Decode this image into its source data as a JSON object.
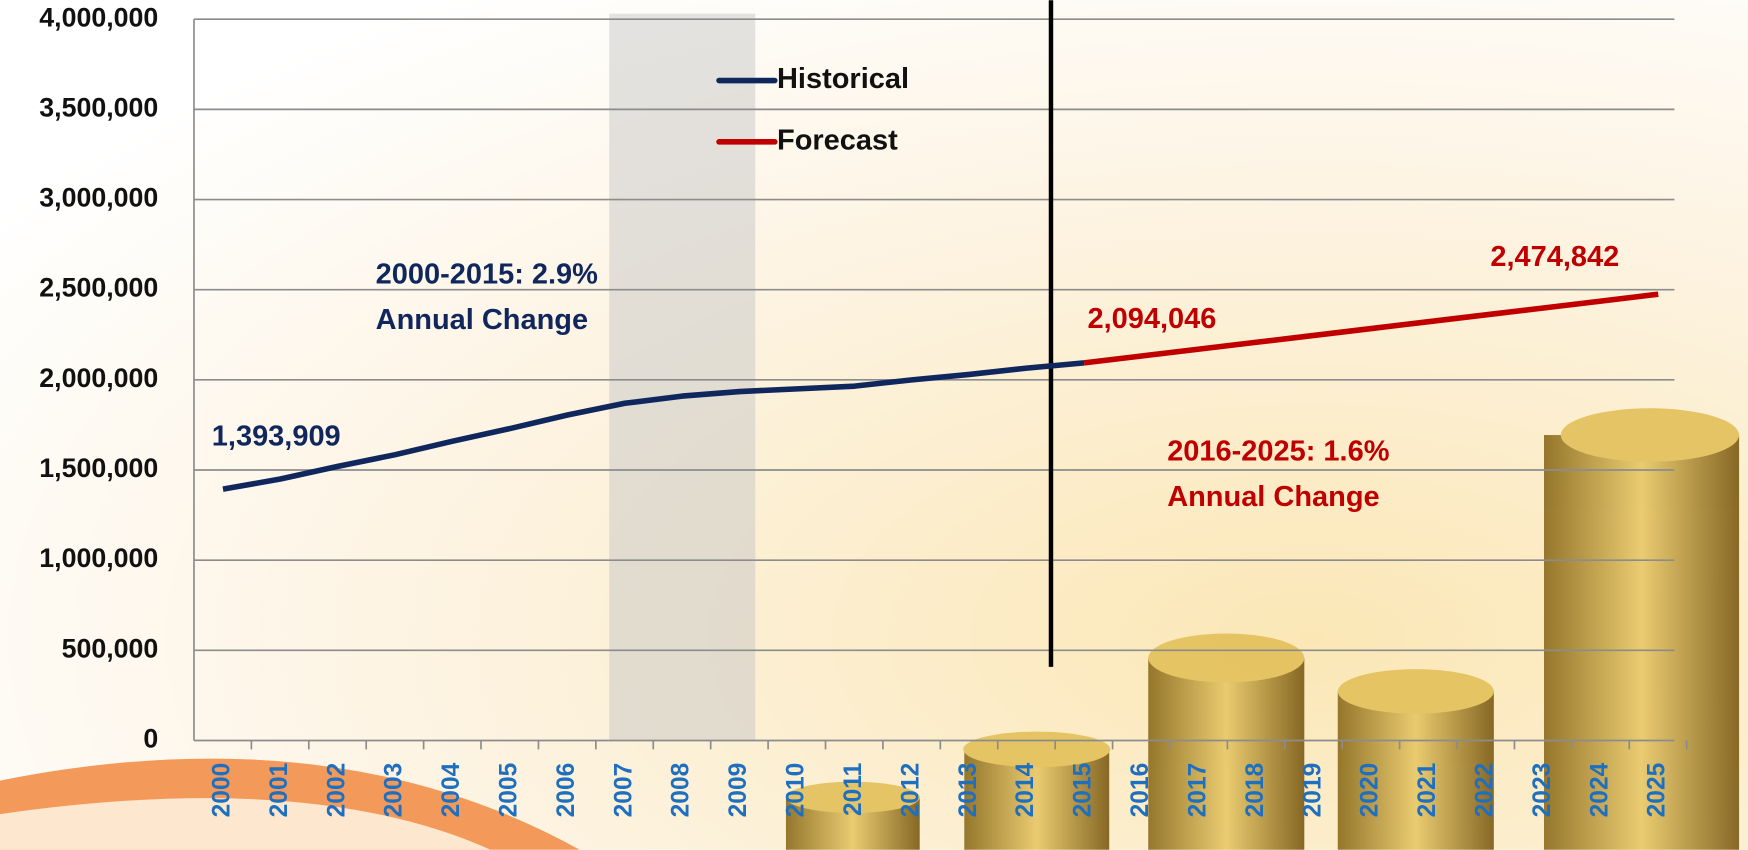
{
  "chart_data": {
    "type": "line",
    "categories": [
      "2000",
      "2001",
      "2002",
      "2003",
      "2004",
      "2005",
      "2006",
      "2007",
      "2008",
      "2009",
      "2010",
      "2011",
      "2012",
      "2013",
      "2014",
      "2015",
      "2016",
      "2017",
      "2018",
      "2019",
      "2020",
      "2021",
      "2022",
      "2023",
      "2024",
      "2025"
    ],
    "series": [
      {
        "name": "Historical",
        "color": "#10275e",
        "values": [
          1393909,
          1450000,
          1520000,
          1585000,
          1660000,
          1730000,
          1805000,
          1870000,
          1910000,
          1935000,
          1950000,
          1965000,
          2000000,
          2030000,
          2065000,
          2094046,
          null,
          null,
          null,
          null,
          null,
          null,
          null,
          null,
          null,
          null
        ],
        "value_labels": [
          "1,393,909",
          null,
          null,
          null,
          null,
          null,
          null,
          null,
          null,
          null,
          null,
          null,
          null,
          null,
          null,
          null,
          null,
          null,
          null,
          null,
          null,
          null,
          null,
          null,
          null,
          null
        ]
      },
      {
        "name": "Forecast",
        "color": "#c00000",
        "values": [
          null,
          null,
          null,
          null,
          null,
          null,
          null,
          null,
          null,
          null,
          null,
          null,
          null,
          null,
          null,
          2094046,
          2132126,
          2170206,
          2208285,
          2246365,
          2284444,
          2322524,
          2360604,
          2398683,
          2436763,
          2474842
        ],
        "value_labels": [
          null,
          null,
          null,
          null,
          null,
          null,
          null,
          null,
          null,
          null,
          null,
          null,
          null,
          null,
          null,
          "2,094,046",
          null,
          null,
          null,
          null,
          null,
          null,
          null,
          null,
          null,
          "2,474,842"
        ]
      }
    ],
    "ylim": [
      0,
      4000000
    ],
    "yticks": [
      0,
      {
        "value": 500000,
        "label": "500,000"
      },
      {
        "value": 1000000,
        "label": "1,000,000"
      },
      {
        "value": 1500000,
        "label": "1,500,000"
      },
      {
        "value": 2000000,
        "label": "2,000,000"
      },
      {
        "value": 2500000,
        "label": "2,500,000"
      },
      {
        "value": 3000000,
        "label": "3,000,000"
      },
      {
        "value": 3500000,
        "label": "3,500,000"
      },
      {
        "value": 4000000,
        "label": "4,000,000"
      }
    ],
    "grid": true,
    "legend": "top",
    "highlight": {
      "from": "2007",
      "to": "2009"
    },
    "annotations": [
      {
        "lines": [
          "2000-2015: 2.9%",
          "Annual Change"
        ],
        "color": "#10275e"
      },
      {
        "lines": [
          "2016-2025: 1.6%",
          "Annual Change"
        ],
        "color": "#c00000"
      }
    ]
  }
}
